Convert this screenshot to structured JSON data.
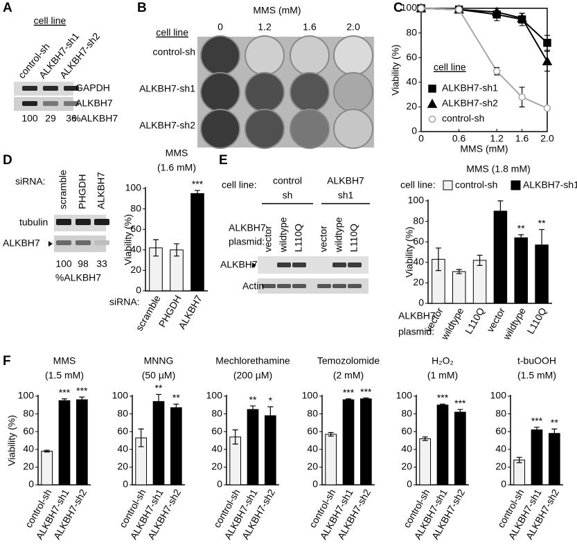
{
  "panel_labels": [
    "A",
    "B",
    "C",
    "D",
    "E",
    "F"
  ],
  "panel_a": {
    "header": "cell line",
    "lanes": [
      "control-sh",
      "ALKBH7-sh1",
      "ALKBH7-sh2"
    ],
    "rows": [
      "GAPDH",
      "ALKBH7"
    ],
    "quant": [
      100,
      29,
      36
    ],
    "quant_label": "%ALKBH7"
  },
  "panel_b": {
    "title": "MMS (mM)",
    "header": "cell line",
    "doses": [
      "0",
      "1.2",
      "1.6",
      "2.0"
    ],
    "rows": [
      "control-sh",
      "ALKBH7-sh1",
      "ALKBH7-sh2"
    ]
  },
  "panel_d_blot": {
    "header": "siRNA:",
    "lanes": [
      "scramble",
      "PHGDH",
      "ALKBH7"
    ],
    "rows": [
      "tubulin",
      "ALKBH7"
    ],
    "quant": [
      100,
      98,
      33
    ],
    "quant_label": "%ALKBH7"
  },
  "panel_e_blot": {
    "header": "cell line:",
    "groups": [
      [
        "control",
        "sh"
      ],
      [
        "ALKBH7",
        "sh1"
      ]
    ],
    "plasmid_label": [
      "ALKBH7",
      "plasmid:"
    ],
    "lanes": [
      "vector",
      "wildtype",
      "L110Q",
      "vector",
      "wildtype",
      "L110Q"
    ],
    "rows": [
      "ALKBH7",
      "Actin"
    ]
  },
  "chart_data": [
    {
      "type": "line",
      "xlabel": "MMS (mM)",
      "ylabel": "Viability (%)",
      "x": [
        0,
        0.6,
        1.2,
        1.6,
        2.0
      ],
      "xlim": [
        0,
        2
      ],
      "xticks": [
        0,
        0.6,
        1.2,
        1.6,
        {
          "value": 2,
          "label": "2.0"
        }
      ],
      "ylim": [
        0,
        100
      ],
      "yticks": [
        0,
        20,
        40,
        60,
        80,
        100
      ],
      "legend_title": "cell line",
      "series": [
        {
          "name": "ALKBH7-sh1",
          "color": "#000000",
          "marker": "square",
          "values": [
            100,
            99,
            95,
            91,
            72
          ],
          "errors": [
            0,
            0,
            5,
            5,
            6
          ]
        },
        {
          "name": "ALKBH7-sh2",
          "color": "#000000",
          "marker": "triangle",
          "values": [
            100,
            99,
            97,
            92,
            57
          ],
          "errors": [
            0,
            0,
            3,
            4,
            8
          ]
        },
        {
          "name": "control-sh",
          "color": "#a6a6a6",
          "marker": "circle",
          "values": [
            100,
            99,
            49,
            28,
            19
          ],
          "errors": [
            0,
            0,
            3,
            8,
            0
          ]
        }
      ]
    },
    {
      "type": "bar",
      "title": "MMS",
      "subtitle": "(1.6 mM)",
      "ylabel": "Viability (%)",
      "category_label": [
        "siRNA:"
      ],
      "categories": [
        "scramble",
        "PHGDH",
        "ALKBH7"
      ],
      "values": [
        42,
        40,
        95
      ],
      "errors": [
        8,
        6,
        3
      ],
      "colors": [
        "#f2f2f2",
        "#f2f2f2",
        "#000000"
      ],
      "annotations": [
        null,
        null,
        "***"
      ],
      "ylim": [
        0,
        100
      ],
      "yticks": [
        0,
        20,
        40,
        60,
        80,
        100
      ]
    },
    {
      "type": "bar",
      "title": "MMS (1.8 mM)",
      "ylabel": "Viability (%)",
      "legend_title": "cell line:",
      "category_label": [
        "ALKBH7",
        "plasmid:"
      ],
      "categories": [
        "vector",
        "wildtype",
        "L110Q",
        "vector",
        "wildtype",
        "L110Q"
      ],
      "series": [
        {
          "name": "control-sh",
          "color": "#f2f2f2",
          "values": [
            43,
            31,
            42,
            null,
            null,
            null
          ],
          "errors": [
            11,
            2,
            5,
            null,
            null,
            null
          ]
        },
        {
          "name": "ALKBH7-sh1",
          "color": "#000000",
          "values": [
            null,
            null,
            null,
            90,
            64,
            57
          ],
          "errors": [
            null,
            null,
            null,
            10,
            3,
            15
          ]
        }
      ],
      "annotations": [
        null,
        null,
        null,
        null,
        "**",
        "**"
      ],
      "ylim": [
        0,
        100
      ],
      "yticks": [
        0,
        20,
        40,
        60,
        80,
        100
      ]
    },
    {
      "type": "bar",
      "title": "MMS",
      "subtitle": "(1.5 mM)",
      "ylabel": "Viability (%)",
      "categories": [
        "control-sh",
        "ALKBH7-sh1",
        "ALKBH7-sh2"
      ],
      "values": [
        38,
        95,
        96
      ],
      "errors": [
        1,
        2,
        3
      ],
      "colors": [
        "#f2f2f2",
        "#000000",
        "#000000"
      ],
      "annotations": [
        null,
        "***",
        "***"
      ],
      "ylim": [
        0,
        100
      ],
      "yticks": [
        0,
        20,
        40,
        60,
        80,
        100
      ]
    },
    {
      "type": "bar",
      "title": "MNNG",
      "subtitle": "(50 µM)",
      "categories": [
        "control-sh",
        "ALKBH7-sh1",
        "ALKBH7-sh2"
      ],
      "values": [
        53,
        94,
        87
      ],
      "errors": [
        10,
        8,
        4
      ],
      "colors": [
        "#f2f2f2",
        "#000000",
        "#000000"
      ],
      "annotations": [
        null,
        "**",
        "**"
      ],
      "ylim": [
        0,
        100
      ],
      "yticks": [
        0,
        20,
        40,
        60,
        80,
        100
      ]
    },
    {
      "type": "bar",
      "title": "Mechlorethamine",
      "subtitle": "(200 µM)",
      "categories": [
        "control-sh",
        "ALKBH7-sh1",
        "ALKBH7-sh2"
      ],
      "values": [
        54,
        85,
        78
      ],
      "errors": [
        8,
        4,
        10
      ],
      "colors": [
        "#f2f2f2",
        "#000000",
        "#000000"
      ],
      "annotations": [
        null,
        "**",
        "*"
      ],
      "ylim": [
        0,
        100
      ],
      "yticks": [
        0,
        20,
        40,
        60,
        80,
        100
      ]
    },
    {
      "type": "bar",
      "title": "Temozolomide",
      "subtitle": "(2 mM)",
      "categories": [
        "control-sh",
        "ALKBH7-sh1",
        "ALKBH7-sh2"
      ],
      "values": [
        57,
        96,
        97
      ],
      "errors": [
        2,
        1,
        1
      ],
      "colors": [
        "#f2f2f2",
        "#000000",
        "#000000"
      ],
      "annotations": [
        null,
        "***",
        "***"
      ],
      "ylim": [
        0,
        100
      ],
      "yticks": [
        0,
        20,
        40,
        60,
        80,
        100
      ]
    },
    {
      "type": "bar",
      "title": "H₂O₂",
      "subtitle": "(1 mM)",
      "categories": [
        "control-sh",
        "ALKBH7-sh1",
        "ALKBH7-sh2"
      ],
      "values": [
        52,
        90,
        82
      ],
      "errors": [
        2,
        1,
        3
      ],
      "colors": [
        "#f2f2f2",
        "#000000",
        "#000000"
      ],
      "annotations": [
        null,
        "***",
        "***"
      ],
      "ylim": [
        0,
        100
      ],
      "yticks": [
        0,
        20,
        40,
        60,
        80,
        100
      ]
    },
    {
      "type": "bar",
      "title": "t-buOOH",
      "subtitle": "(1.5 mM)",
      "categories": [
        "control-sh",
        "ALKBH7-sh1",
        "ALKBH7-sh2"
      ],
      "values": [
        28,
        62,
        58
      ],
      "errors": [
        3,
        3,
        5
      ],
      "colors": [
        "#f2f2f2",
        "#000000",
        "#000000"
      ],
      "annotations": [
        null,
        "***",
        "**"
      ],
      "ylim": [
        0,
        100
      ],
      "yticks": [
        0,
        20,
        40,
        60,
        80,
        100
      ]
    }
  ]
}
